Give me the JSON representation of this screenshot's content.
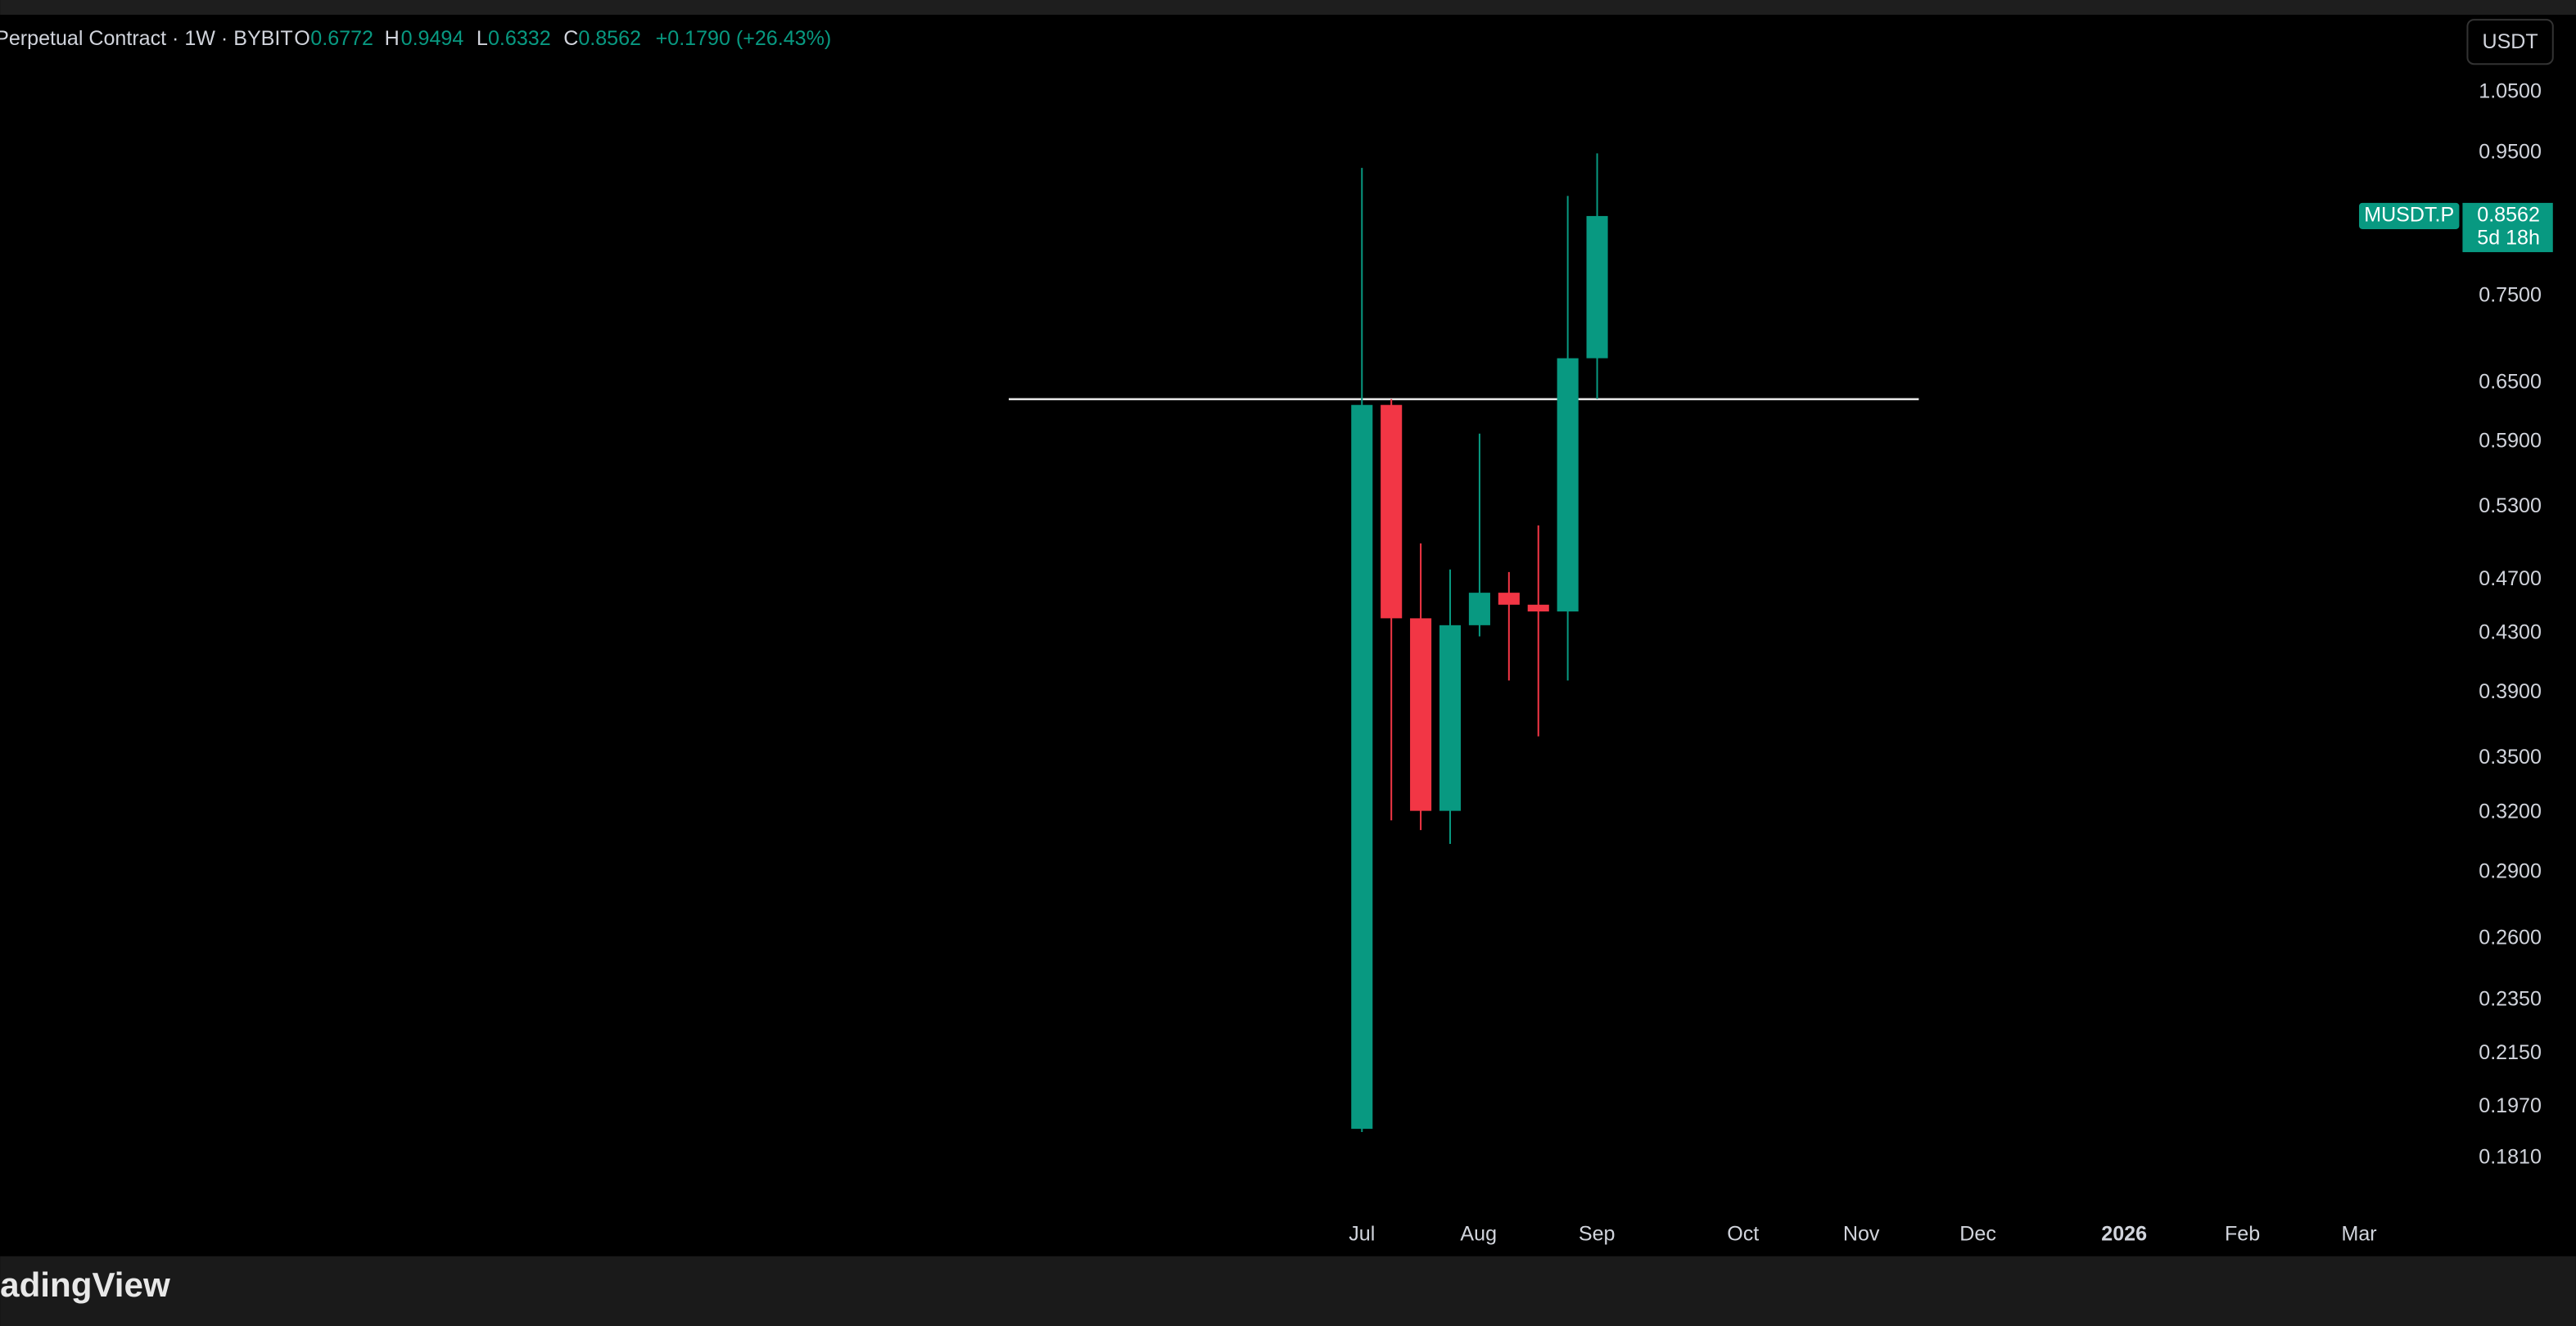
{
  "chart_data": {
    "type": "candlestick",
    "symbol": "Perpetual Contract · 1W · BYBIT",
    "change": "+0.1790 (+26.43%)",
    "currency": "USDT",
    "ticker": "MUSDT.P",
    "countdown": "5d 18h",
    "up_color": "#089981",
    "down_color": "#f23645",
    "log_scale": true,
    "grid": false,
    "open": [
      0.19,
      0.627,
      0.441,
      0.321,
      0.436,
      0.46,
      0.451,
      0.446,
      0.6772
    ],
    "high": [
      0.927,
      0.633,
      0.499,
      0.478,
      0.598,
      0.476,
      0.514,
      0.885,
      0.9494
    ],
    "low": [
      0.189,
      0.316,
      0.311,
      0.304,
      0.428,
      0.398,
      0.363,
      0.398,
      0.6332
    ],
    "close": [
      0.627,
      0.441,
      0.321,
      0.436,
      0.46,
      0.451,
      0.446,
      0.6772,
      0.8562
    ],
    "hline": 0.633,
    "ylim": [
      0.154,
      1.19
    ],
    "yticks": [
      {
        "value": 1.05,
        "label": "1.0500"
      },
      {
        "value": 0.95,
        "label": "0.9500"
      },
      {
        "value": 0.75,
        "label": "0.7500"
      },
      {
        "value": 0.65,
        "label": "0.6500"
      },
      {
        "value": 0.59,
        "label": "0.5900"
      },
      {
        "value": 0.53,
        "label": "0.5300"
      },
      {
        "value": 0.47,
        "label": "0.4700"
      },
      {
        "value": 0.43,
        "label": "0.4300"
      },
      {
        "value": 0.39,
        "label": "0.3900"
      },
      {
        "value": 0.35,
        "label": "0.3500"
      },
      {
        "value": 0.32,
        "label": "0.3200"
      },
      {
        "value": 0.29,
        "label": "0.2900"
      },
      {
        "value": 0.26,
        "label": "0.2600"
      },
      {
        "value": 0.235,
        "label": "0.2350"
      },
      {
        "value": 0.215,
        "label": "0.2150"
      },
      {
        "value": 0.197,
        "label": "0.1970"
      },
      {
        "value": 0.181,
        "label": "0.1810"
      }
    ],
    "time_labels": [
      "Jul",
      "Aug",
      "Sep",
      "Oct",
      "Nov",
      "Dec",
      "2026",
      "Feb",
      "Mar"
    ],
    "brand": "adingView"
  }
}
